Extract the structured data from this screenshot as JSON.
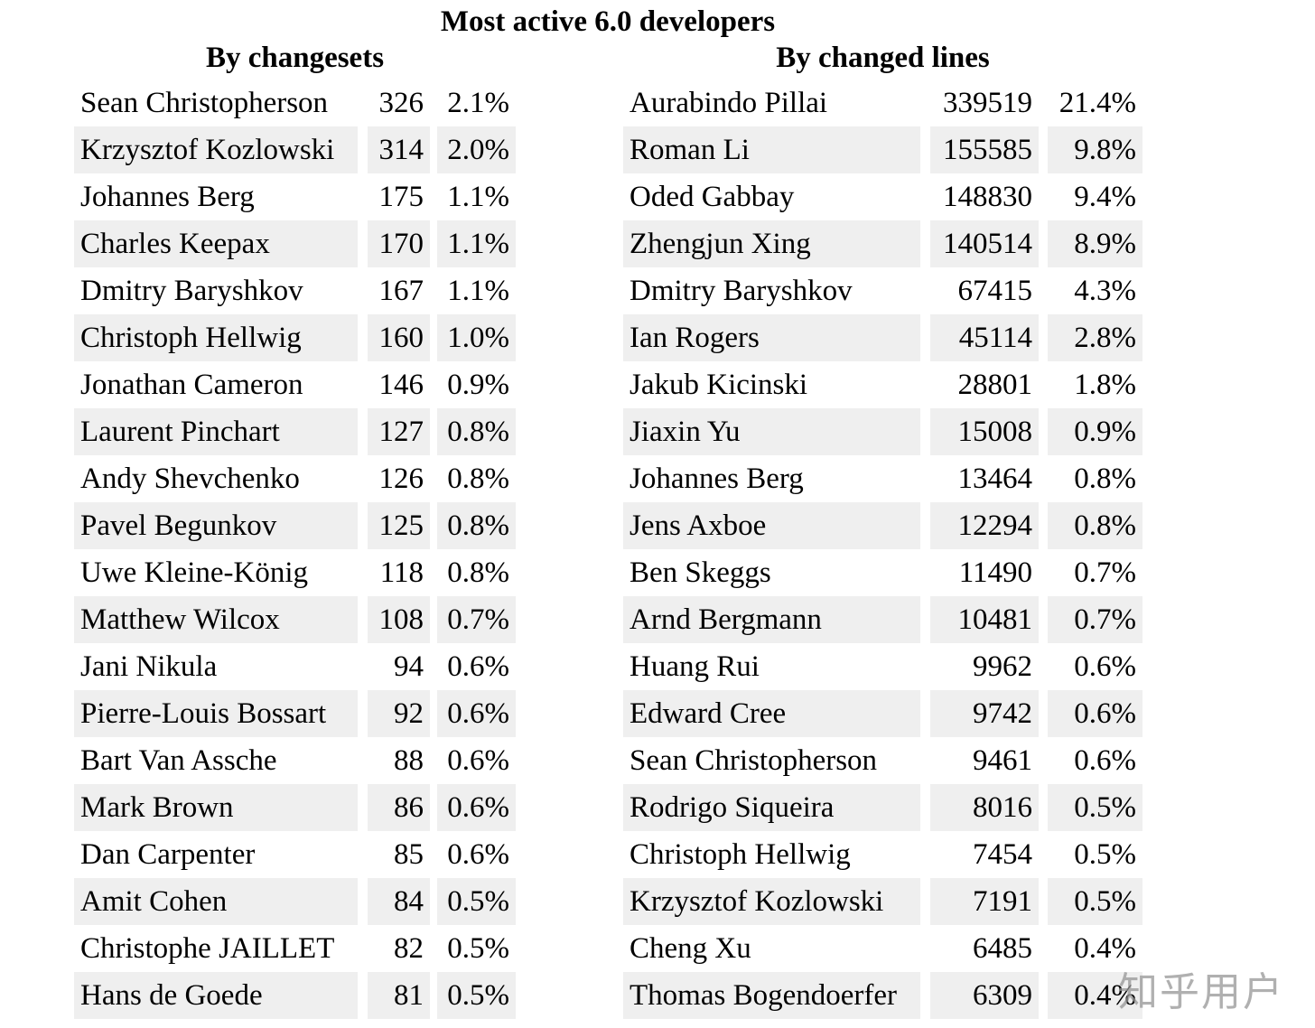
{
  "title": "Most active 6.0 developers",
  "by_changesets": {
    "heading": "By changesets",
    "rows": [
      [
        "Sean Christopherson",
        "326",
        "2.1%"
      ],
      [
        "Krzysztof Kozlowski",
        "314",
        "2.0%"
      ],
      [
        "Johannes Berg",
        "175",
        "1.1%"
      ],
      [
        "Charles Keepax",
        "170",
        "1.1%"
      ],
      [
        "Dmitry Baryshkov",
        "167",
        "1.1%"
      ],
      [
        "Christoph Hellwig",
        "160",
        "1.0%"
      ],
      [
        "Jonathan Cameron",
        "146",
        "0.9%"
      ],
      [
        "Laurent Pinchart",
        "127",
        "0.8%"
      ],
      [
        "Andy Shevchenko",
        "126",
        "0.8%"
      ],
      [
        "Pavel Begunkov",
        "125",
        "0.8%"
      ],
      [
        "Uwe Kleine-König",
        "118",
        "0.8%"
      ],
      [
        "Matthew Wilcox",
        "108",
        "0.7%"
      ],
      [
        "Jani Nikula",
        "94",
        "0.6%"
      ],
      [
        "Pierre-Louis Bossart",
        "92",
        "0.6%"
      ],
      [
        "Bart Van Assche",
        "88",
        "0.6%"
      ],
      [
        "Mark Brown",
        "86",
        "0.6%"
      ],
      [
        "Dan Carpenter",
        "85",
        "0.6%"
      ],
      [
        "Amit Cohen",
        "84",
        "0.5%"
      ],
      [
        "Christophe JAILLET",
        "82",
        "0.5%"
      ],
      [
        "Hans de Goede",
        "81",
        "0.5%"
      ]
    ]
  },
  "by_changed_lines": {
    "heading": "By changed lines",
    "rows": [
      [
        "Aurabindo Pillai",
        "339519",
        "21.4%"
      ],
      [
        "Roman Li",
        "155585",
        "9.8%"
      ],
      [
        "Oded Gabbay",
        "148830",
        "9.4%"
      ],
      [
        "Zhengjun Xing",
        "140514",
        "8.9%"
      ],
      [
        "Dmitry Baryshkov",
        "67415",
        "4.3%"
      ],
      [
        "Ian Rogers",
        "45114",
        "2.8%"
      ],
      [
        "Jakub Kicinski",
        "28801",
        "1.8%"
      ],
      [
        "Jiaxin Yu",
        "15008",
        "0.9%"
      ],
      [
        "Johannes Berg",
        "13464",
        "0.8%"
      ],
      [
        "Jens Axboe",
        "12294",
        "0.8%"
      ],
      [
        "Ben Skeggs",
        "11490",
        "0.7%"
      ],
      [
        "Arnd Bergmann",
        "10481",
        "0.7%"
      ],
      [
        "Huang Rui",
        "9962",
        "0.6%"
      ],
      [
        "Edward Cree",
        "9742",
        "0.6%"
      ],
      [
        "Sean Christopherson",
        "9461",
        "0.6%"
      ],
      [
        "Rodrigo Siqueira",
        "8016",
        "0.5%"
      ],
      [
        "Christoph Hellwig",
        "7454",
        "0.5%"
      ],
      [
        "Krzysztof Kozlowski",
        "7191",
        "0.5%"
      ],
      [
        "Cheng Xu",
        "6485",
        "0.4%"
      ],
      [
        "Thomas Bogendoerfer",
        "6309",
        "0.4%"
      ]
    ]
  },
  "watermark": "知乎用户",
  "colors": {
    "row_shade": "#efefef"
  }
}
